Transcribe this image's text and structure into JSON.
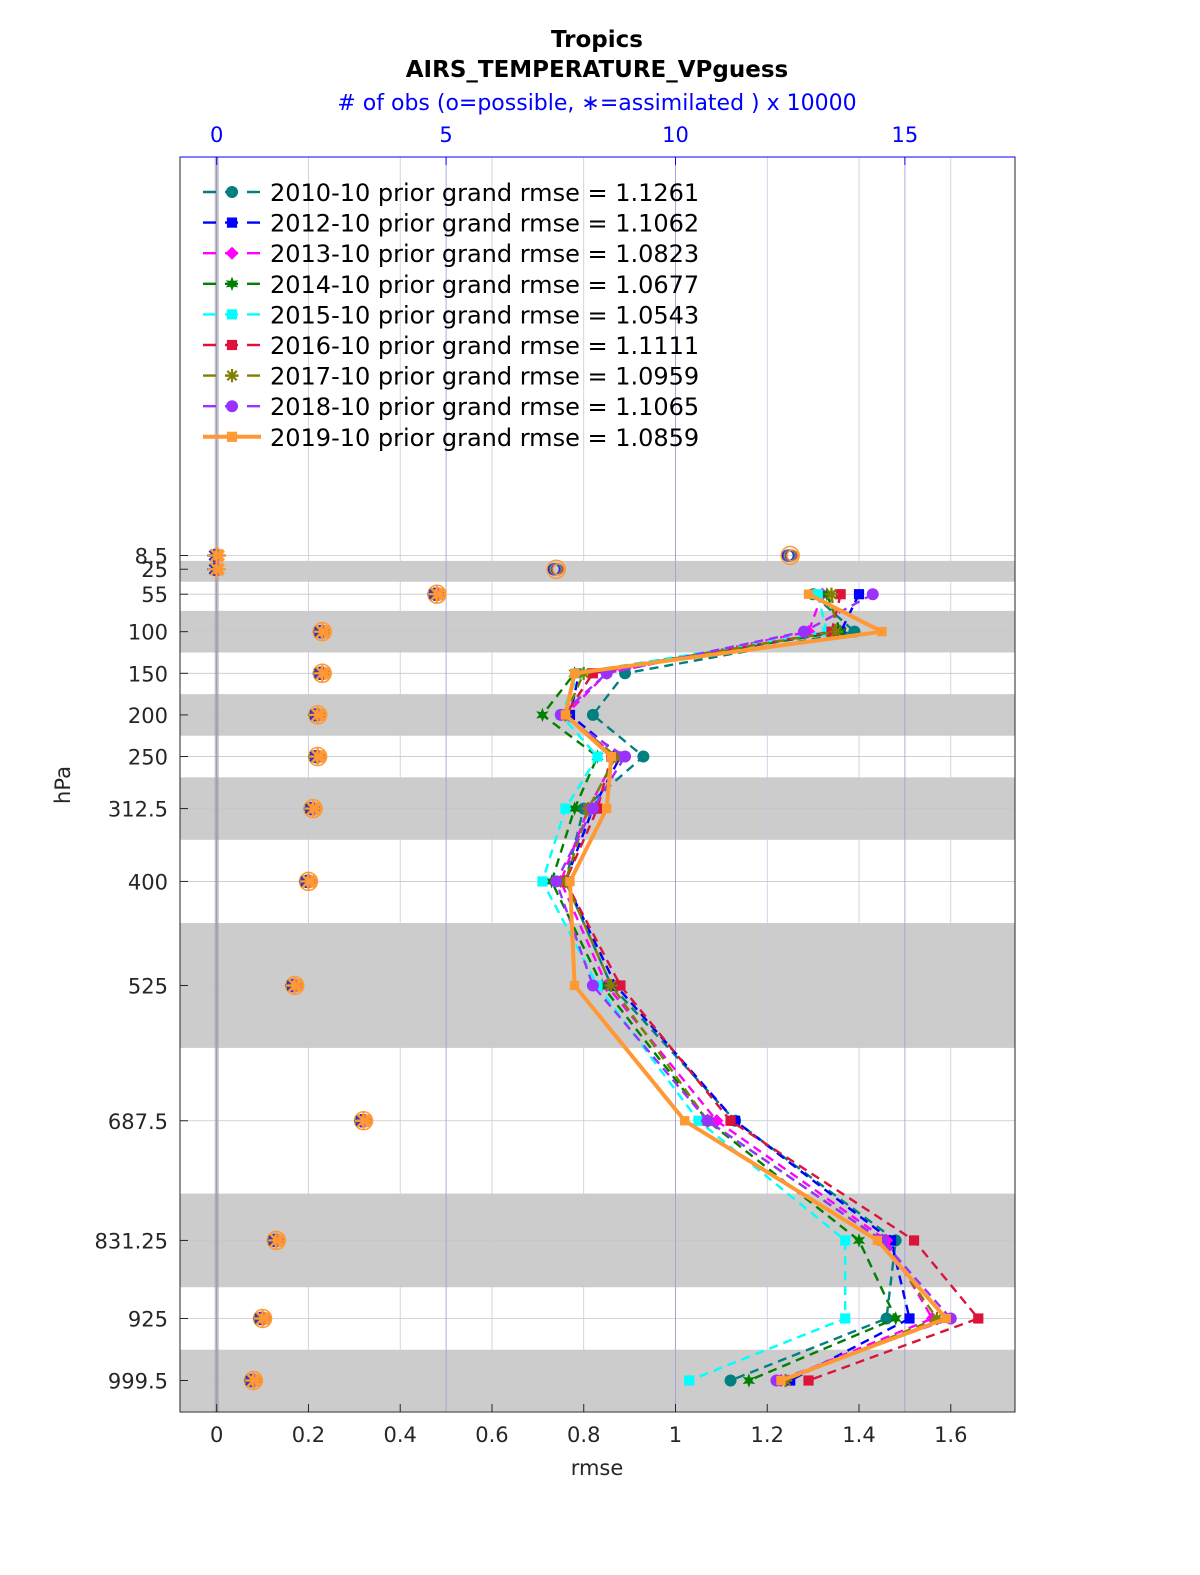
{
  "chart_data": {
    "type": "line",
    "title": "Tropics",
    "subtitle": "AIRS_TEMPERATURE_VPguess",
    "top_axis_label": "# of obs (o=possible, ∗=assimilated ) x 10000",
    "xlabel": "rmse",
    "ylabel": "hPa",
    "xlim": [
      -0.08,
      1.74
    ],
    "top_xlim": [
      -0.8,
      17.4
    ],
    "x_ticks": [
      "0",
      "0.2",
      "0.4",
      "0.6",
      "0.8",
      "1",
      "1.2",
      "1.4",
      "1.6"
    ],
    "x_tick_values": [
      0,
      0.2,
      0.4,
      0.6,
      0.8,
      1.0,
      1.2,
      1.4,
      1.6
    ],
    "top_ticks": [
      "0",
      "5",
      "10",
      "15"
    ],
    "top_tick_values": [
      0,
      5,
      10,
      15
    ],
    "levels": [
      "8.5",
      "25",
      "55",
      "100",
      "150",
      "200",
      "250",
      "312.5",
      "400",
      "525",
      "687.5",
      "831.25",
      "925",
      "999.5"
    ],
    "level_values": [
      8.5,
      25,
      55,
      100,
      150,
      200,
      250,
      312.5,
      400,
      525,
      687.5,
      831.25,
      925,
      999.5
    ],
    "y_axis_direction": "reversed (pressure increases downward)",
    "shaded_layers": [
      [
        15,
        40
      ],
      [
        75,
        125
      ],
      [
        175,
        225
      ],
      [
        275,
        350
      ],
      [
        450,
        600
      ],
      [
        775,
        887.5
      ],
      [
        962.5,
        1036.5
      ]
    ],
    "grid": true,
    "legend_location": "top-left",
    "series": [
      {
        "name": "2010-10 prior grand rmse = 1.1261",
        "color": "#008080",
        "marker": "circle",
        "style": "dashed",
        "rmse": [
          null,
          null,
          1.3,
          1.39,
          0.89,
          0.82,
          0.93,
          0.8,
          0.76,
          0.86,
          1.13,
          1.48,
          1.46,
          1.12
        ]
      },
      {
        "name": "2012-10 prior grand rmse = 1.1062",
        "color": "#0000ff",
        "marker": "square",
        "style": "dashed",
        "rmse": [
          null,
          null,
          1.4,
          1.36,
          0.79,
          0.77,
          0.88,
          0.82,
          0.76,
          0.87,
          1.13,
          1.47,
          1.51,
          1.25
        ]
      },
      {
        "name": "2013-10 prior grand rmse = 1.0823",
        "color": "#ff00ff",
        "marker": "diamond",
        "style": "dashed",
        "rmse": [
          null,
          null,
          1.32,
          1.29,
          0.85,
          0.76,
          0.87,
          0.81,
          0.75,
          0.85,
          1.09,
          1.46,
          1.56,
          1.23
        ]
      },
      {
        "name": "2014-10 prior grand rmse = 1.0677",
        "color": "#008000",
        "marker": "hexagram",
        "style": "dashed",
        "rmse": [
          null,
          null,
          1.33,
          1.36,
          0.78,
          0.71,
          0.83,
          0.78,
          0.73,
          0.84,
          1.07,
          1.4,
          1.48,
          1.16
        ]
      },
      {
        "name": "2015-10 prior grand rmse = 1.0543",
        "color": "#00ffff",
        "marker": "square",
        "style": "dashed",
        "rmse": [
          null,
          null,
          1.31,
          1.33,
          0.79,
          0.75,
          0.83,
          0.76,
          0.71,
          0.83,
          1.05,
          1.37,
          1.37,
          1.03
        ]
      },
      {
        "name": "2016-10 prior grand rmse = 1.1111",
        "color": "#dc143c",
        "marker": "square",
        "style": "dashed",
        "rmse": [
          null,
          null,
          1.36,
          1.34,
          0.82,
          0.76,
          0.86,
          0.83,
          0.76,
          0.88,
          1.12,
          1.52,
          1.66,
          1.29
        ]
      },
      {
        "name": "2017-10 prior grand rmse = 1.0959",
        "color": "#808000",
        "marker": "asterisk",
        "style": "dashed",
        "rmse": [
          null,
          null,
          1.34,
          1.35,
          0.8,
          0.76,
          0.87,
          0.81,
          0.76,
          0.86,
          1.07,
          1.45,
          1.57,
          1.24
        ]
      },
      {
        "name": "2018-10 prior grand rmse = 1.1065",
        "color": "#9932ff",
        "marker": "circle",
        "style": "dashed",
        "rmse": [
          null,
          null,
          1.43,
          1.28,
          0.85,
          0.75,
          0.89,
          0.82,
          0.74,
          0.82,
          1.07,
          1.45,
          1.6,
          1.22
        ]
      },
      {
        "name": "2019-10 prior grand rmse = 1.0859",
        "color": "#ff9933",
        "marker": "square",
        "style": "solid",
        "rmse": [
          null,
          null,
          1.29,
          1.45,
          0.78,
          0.76,
          0.86,
          0.85,
          0.77,
          0.78,
          1.02,
          1.44,
          1.59,
          1.23
        ]
      }
    ],
    "obs_counts": {
      "units": "x 10000",
      "possible": [
        12.5,
        7.4,
        4.8,
        2.3,
        2.3,
        2.2,
        2.2,
        2.1,
        2.0,
        1.7,
        3.2,
        1.3,
        1.0,
        0.8
      ],
      "assimilated": [
        0,
        0,
        4.8,
        2.3,
        2.3,
        2.2,
        2.2,
        2.1,
        2.0,
        1.7,
        3.2,
        1.3,
        1.0,
        0.8
      ]
    }
  }
}
